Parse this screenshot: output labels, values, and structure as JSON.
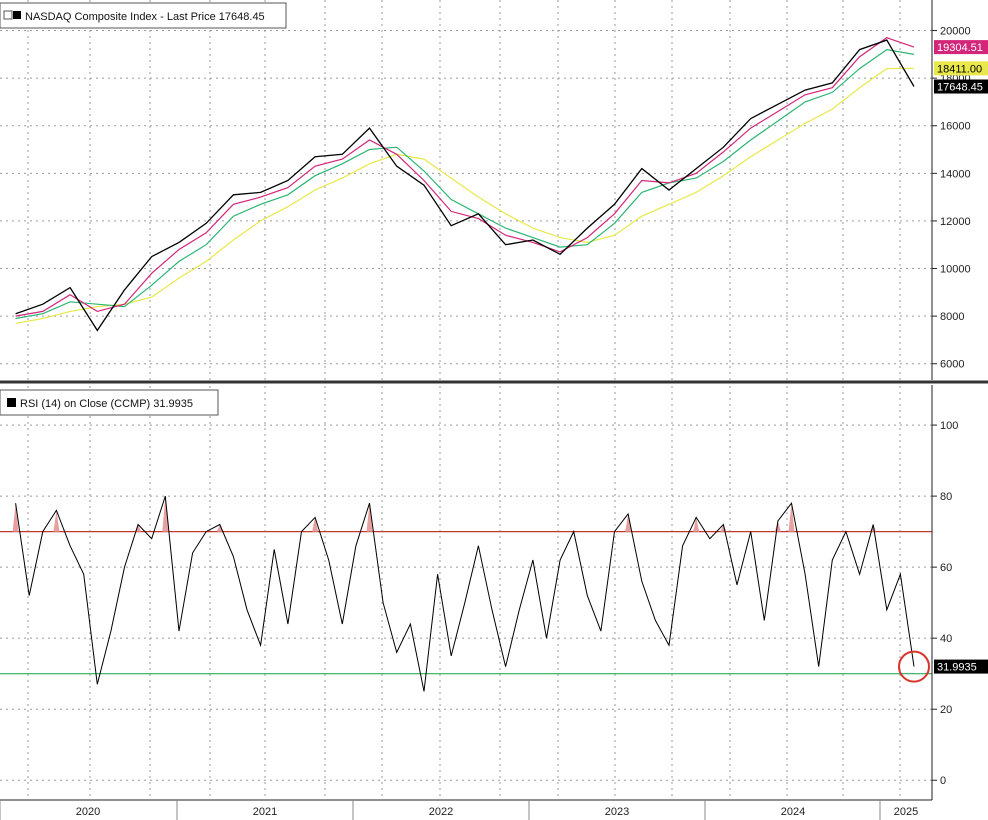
{
  "chart_data": [
    {
      "type": "line",
      "title": "NASDAQ Composite Index - Last Price 17648.45",
      "legend_placement": "top-left",
      "ylim": [
        5400,
        21200
      ],
      "yticks": [
        6000,
        8000,
        10000,
        12000,
        14000,
        16000,
        18000,
        20000
      ],
      "tick_labels": [
        "6000",
        "8000",
        "10000",
        "12000",
        "14000",
        "16000",
        "18000",
        "20000"
      ],
      "grid": true,
      "colors": {
        "price": "#000000",
        "ma_short": "#d3267b",
        "ma_mid": "#2bb673",
        "ma_long": "#e8e84a"
      },
      "x": [
        "2019-09",
        "2019-11",
        "2020-01",
        "2020-03",
        "2020-05",
        "2020-07",
        "2020-09",
        "2020-11",
        "2021-01",
        "2021-03",
        "2021-05",
        "2021-07",
        "2021-09",
        "2021-11",
        "2022-01",
        "2022-03",
        "2022-05",
        "2022-07",
        "2022-09",
        "2022-11",
        "2023-01",
        "2023-03",
        "2023-05",
        "2023-07",
        "2023-09",
        "2023-11",
        "2024-01",
        "2024-03",
        "2024-05",
        "2024-07",
        "2024-09",
        "2024-11",
        "2025-01",
        "2025-03"
      ],
      "series": [
        {
          "values": [
            8100,
            8500,
            9200,
            7400,
            9100,
            10500,
            11100,
            11900,
            13100,
            13200,
            13700,
            14700,
            14800,
            15900,
            14300,
            13500,
            11800,
            12300,
            11000,
            11200,
            10600,
            11700,
            12700,
            14200,
            13300,
            14200,
            15100,
            16300,
            16900,
            17500,
            17800,
            19200,
            19600,
            17648
          ]
        },
        {
          "values": [
            8000,
            8200,
            8900,
            8200,
            8500,
            9800,
            10800,
            11500,
            12700,
            13000,
            13400,
            14300,
            14600,
            15400,
            14800,
            13700,
            12400,
            12100,
            11400,
            11100,
            10700,
            11300,
            12300,
            13700,
            13600,
            14000,
            14900,
            15900,
            16600,
            17300,
            17600,
            18900,
            19700,
            19304
          ]
        },
        {
          "values": [
            7900,
            8100,
            8600,
            8500,
            8400,
            9300,
            10300,
            11000,
            12200,
            12700,
            13100,
            13900,
            14400,
            15000,
            15100,
            14100,
            12900,
            12300,
            11700,
            11300,
            10900,
            11000,
            11900,
            13200,
            13600,
            13800,
            14500,
            15400,
            16200,
            17000,
            17400,
            18400,
            19200,
            19000
          ]
        },
        {
          "values": [
            7700,
            7900,
            8200,
            8400,
            8500,
            8800,
            9600,
            10300,
            11200,
            12000,
            12600,
            13300,
            13800,
            14400,
            14800,
            14600,
            13800,
            13000,
            12300,
            11700,
            11300,
            11100,
            11400,
            12200,
            12700,
            13200,
            13900,
            14700,
            15400,
            16100,
            16700,
            17600,
            18400,
            18411
          ]
        }
      ],
      "last_labels": [
        "19304.51",
        "18411.00",
        "17648.45"
      ]
    },
    {
      "type": "line",
      "title": "RSI (14) on Close (CCMP) 31.9935",
      "legend_placement": "top-left",
      "ylim": [
        -5,
        111
      ],
      "yticks": [
        0,
        20,
        40,
        60,
        80,
        100
      ],
      "tick_labels": [
        "0",
        "20",
        "40",
        "60",
        "80",
        "100"
      ],
      "reference_lines": [
        70,
        30
      ],
      "reference_colors": [
        "#c0392b",
        "#27ae60"
      ],
      "grid": true,
      "colors": {
        "rsi": "#000000",
        "overbought_fill": "#e8a0a0",
        "highlight": "#d9342b"
      },
      "x": [
        "2019-09",
        "2019-10",
        "2019-11",
        "2019-12",
        "2020-01",
        "2020-02",
        "2020-03",
        "2020-04",
        "2020-05",
        "2020-06",
        "2020-07",
        "2020-08",
        "2020-09",
        "2020-10",
        "2020-11",
        "2020-12",
        "2021-01",
        "2021-02",
        "2021-03",
        "2021-04",
        "2021-05",
        "2021-06",
        "2021-07",
        "2021-08",
        "2021-09",
        "2021-10",
        "2021-11",
        "2021-12",
        "2022-01",
        "2022-02",
        "2022-03",
        "2022-04",
        "2022-05",
        "2022-06",
        "2022-07",
        "2022-08",
        "2022-09",
        "2022-10",
        "2022-11",
        "2022-12",
        "2023-01",
        "2023-02",
        "2023-03",
        "2023-04",
        "2023-05",
        "2023-06",
        "2023-07",
        "2023-08",
        "2023-09",
        "2023-10",
        "2023-11",
        "2023-12",
        "2024-01",
        "2024-02",
        "2024-03",
        "2024-04",
        "2024-05",
        "2024-06",
        "2024-07",
        "2024-08",
        "2024-09",
        "2024-10",
        "2024-11",
        "2024-12",
        "2025-01",
        "2025-02",
        "2025-03"
      ],
      "series": [
        {
          "values": [
            78,
            52,
            70,
            76,
            66,
            58,
            27,
            42,
            60,
            72,
            68,
            80,
            42,
            64,
            70,
            72,
            63,
            48,
            38,
            65,
            44,
            70,
            74,
            62,
            44,
            66,
            78,
            50,
            36,
            44,
            25,
            58,
            35,
            50,
            66,
            48,
            32,
            48,
            62,
            40,
            62,
            70,
            52,
            42,
            70,
            75,
            56,
            45,
            38,
            66,
            74,
            68,
            72,
            55,
            70,
            45,
            73,
            78,
            58,
            32,
            62,
            70,
            58,
            72,
            48,
            58,
            32
          ]
        }
      ],
      "last_labels": [
        "31.9935"
      ]
    }
  ],
  "x_axis": {
    "labels": [
      "2020",
      "2021",
      "2022",
      "2023",
      "2024",
      "2025"
    ]
  }
}
